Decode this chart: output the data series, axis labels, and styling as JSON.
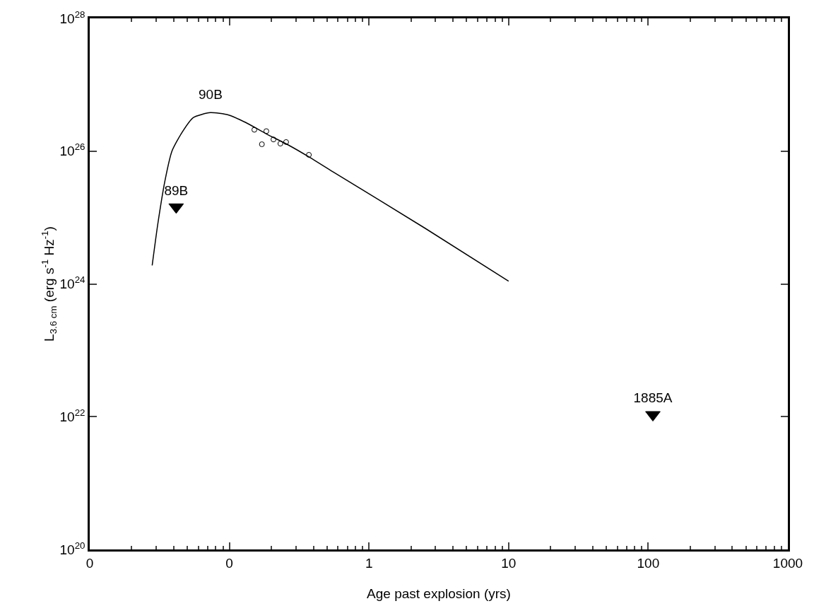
{
  "chart_data": {
    "type": "scatter",
    "xlabel": "Age past explosion (yrs)",
    "ylabel": "L$_{3.6 cm}$ (erg s$^{-1}$ Hz$^{-1}$)",
    "log": "xy",
    "grid": false,
    "xlim": [
      0.01,
      1000
    ],
    "xticks": [
      {
        "value": 0.01,
        "label": "0"
      },
      {
        "value": 0.1,
        "label": "0"
      },
      1,
      10,
      100,
      1000
    ],
    "ylim": [
      1e+20,
      1e+28
    ],
    "yticks": [
      {
        "value": 1e+20,
        "label": "10$^{20}$"
      },
      {
        "value": 1e+22,
        "label": "10$^{22}$"
      },
      {
        "value": 1e+24,
        "label": "10$^{24}$"
      },
      {
        "value": 1e+26,
        "label": "10$^{26}$"
      },
      {
        "value": 1e+28,
        "label": "10$^{28}$"
      }
    ],
    "series": [
      {
        "name": "90B",
        "type": "line",
        "color": "#000000",
        "marker": "none",
        "line_style": "solid",
        "x": [
          0.028,
          0.0307,
          0.0345,
          0.0388,
          0.0457,
          0.0551,
          0.073,
          0.099,
          0.131,
          0.186,
          0.264,
          0.375,
          0.551,
          2.52,
          10
        ],
        "values": [
          1.9e+24,
          7.9e+24,
          3.5e+25,
          1e+26,
          1.9e+26,
          3.2e+26,
          3.8e+26,
          3.5e+26,
          2.7e+26,
          1.8e+26,
          1.24e+26,
          8.1e+25,
          4.9e+25,
          6.9e+24,
          1.1e+24
        ]
      },
      {
        "color": "#000000",
        "marker": "circle",
        "x": [
          0.151,
          0.184,
          0.171,
          0.207,
          0.232,
          0.255,
          0.371
        ],
        "values": [
          2.1e+26,
          2e+26,
          1.27e+26,
          1.5e+26,
          1.3e+26,
          1.37e+26,
          8.8e+25
        ]
      },
      {
        "name": "89B",
        "color": "#000000",
        "marker": "triangle",
        "x": [
          0.0416
        ],
        "values": [
          1.44e+25
        ]
      },
      {
        "name": "1885A",
        "color": "#000000",
        "marker": "triangle",
        "x": [
          108
        ],
        "values": [
          1.07e+22
        ]
      }
    ]
  }
}
